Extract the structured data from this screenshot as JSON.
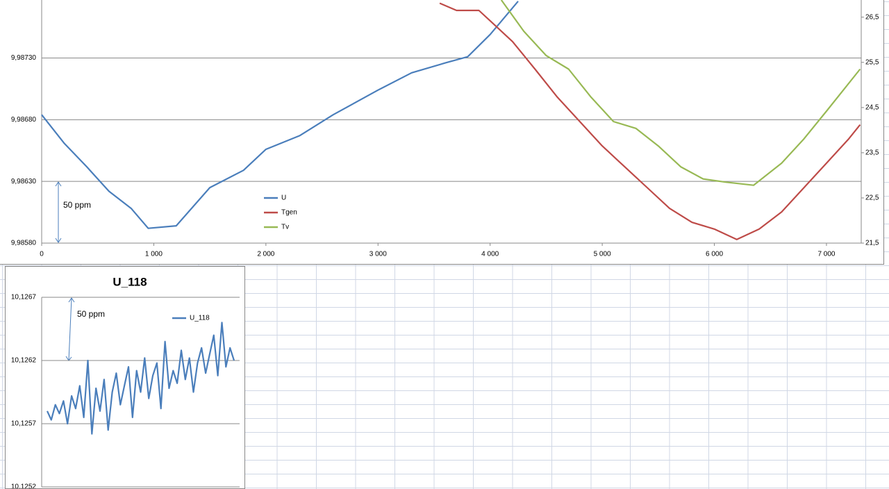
{
  "chart_data": [
    {
      "type": "line",
      "xlim": [
        0,
        7310
      ],
      "xticks": [
        0,
        {
          "value": 1000,
          "label": "1 000"
        },
        {
          "value": 2000,
          "label": "2 000"
        },
        {
          "value": 3000,
          "label": "3 000"
        },
        {
          "value": 4000,
          "label": "4 000"
        },
        {
          "value": 5000,
          "label": "5 000"
        },
        {
          "value": 6000,
          "label": "6 000"
        },
        {
          "value": 7000,
          "label": "7 000"
        }
      ],
      "ylim": [
        9.9858,
        9.98777
      ],
      "yticks": [
        {
          "value": 9.9858,
          "label": "9,98580"
        },
        {
          "value": 9.9863,
          "label": "9,98630"
        },
        {
          "value": 9.9868,
          "label": "9,98680"
        },
        {
          "value": 9.9873,
          "label": "9,98730"
        }
      ],
      "y2lim": [
        21.5,
        26.88
      ],
      "y2ticks": [
        {
          "value": 21.5,
          "label": "21,5"
        },
        {
          "value": 22.5,
          "label": "22,5"
        },
        {
          "value": 23.5,
          "label": "23,5"
        },
        {
          "value": 24.5,
          "label": "24,5"
        },
        {
          "value": 25.5,
          "label": "25,5"
        },
        {
          "value": 26.5,
          "label": "26,5"
        }
      ],
      "grid": true,
      "legend": "middle-left",
      "annotation": "50 ppm",
      "series": [
        {
          "name": "U",
          "color": "#4a7ebb",
          "x": [
            0,
            200,
            400,
            600,
            800,
            950,
            1200,
            1500,
            1800,
            2000,
            2300,
            2600,
            3000,
            3300,
            3600,
            3800,
            4000,
            4250
          ],
          "values": [
            9.98684,
            9.98661,
            9.98642,
            9.98622,
            9.98608,
            9.98592,
            9.98594,
            9.98625,
            9.98639,
            9.98656,
            9.98667,
            9.98684,
            9.98704,
            9.98718,
            9.98726,
            9.98731,
            9.98749,
            9.98776
          ]
        },
        {
          "name": "Tgen",
          "color": "#be4b48",
          "axis": "y2",
          "x": [
            3550,
            3700,
            3900,
            4000,
            4200,
            4400,
            4600,
            4800,
            5000,
            5200,
            5400,
            5600,
            5800,
            6000,
            6200,
            6400,
            6600,
            6800,
            7000,
            7200,
            7300
          ],
          "values": [
            26.81,
            26.65,
            26.65,
            26.42,
            25.96,
            25.35,
            24.73,
            24.19,
            23.65,
            23.19,
            22.73,
            22.27,
            21.96,
            21.81,
            21.58,
            21.81,
            22.19,
            22.73,
            23.27,
            23.81,
            24.12
          ]
        },
        {
          "name": "Tv",
          "color": "#98b954",
          "axis": "y2",
          "x": [
            4100,
            4300,
            4500,
            4700,
            4900,
            5100,
            5300,
            5500,
            5700,
            5900,
            6100,
            6350,
            6600,
            6800,
            7000,
            7300
          ],
          "values": [
            26.88,
            26.19,
            25.65,
            25.35,
            24.73,
            24.19,
            24.04,
            23.65,
            23.19,
            22.92,
            22.85,
            22.78,
            23.27,
            23.81,
            24.42,
            25.35
          ]
        }
      ]
    },
    {
      "type": "line",
      "title": "U_118",
      "ylim": [
        10.1252,
        10.1267
      ],
      "yticks": [
        {
          "value": 10.1267,
          "label": "10,1267"
        },
        {
          "value": 10.1262,
          "label": "10,1262"
        },
        {
          "value": 10.1257,
          "label": "10,1257"
        },
        {
          "value": 10.1252,
          "label": "10,1252"
        }
      ],
      "grid": true,
      "legend": "top-right",
      "annotation": "50 ppm",
      "series": [
        {
          "name": "U_118",
          "color": "#4a7ebb",
          "values": [
            10.1258,
            10.12573,
            10.12585,
            10.12578,
            10.12588,
            10.1257,
            10.12592,
            10.12582,
            10.126,
            10.12575,
            10.1262,
            10.12562,
            10.12598,
            10.1258,
            10.12605,
            10.12565,
            10.12595,
            10.1261,
            10.12585,
            10.126,
            10.12615,
            10.12575,
            10.12612,
            10.12595,
            10.12622,
            10.1259,
            10.12608,
            10.12618,
            10.12582,
            10.12635,
            10.12598,
            10.12612,
            10.12602,
            10.12628,
            10.12605,
            10.12622,
            10.12595,
            10.12618,
            10.1263,
            10.1261,
            10.12625,
            10.1264,
            10.12608,
            10.1265,
            10.12615,
            10.1263,
            10.1262
          ]
        }
      ]
    }
  ]
}
